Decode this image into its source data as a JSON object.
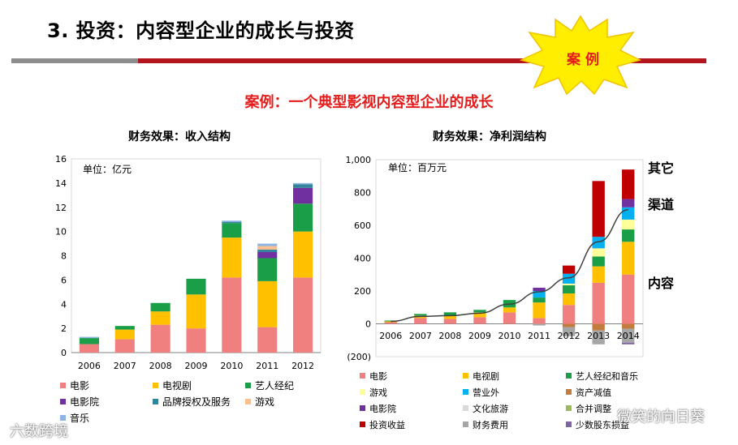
{
  "header": {
    "title": "3. 投资：内容型企业的成长与投资",
    "badge": "案 例",
    "subtitle": "案例：一个典型影视内容型企业的成长"
  },
  "watermarks": {
    "left": "六数跨境",
    "right": "微笑的向日葵"
  },
  "chart_data": [
    {
      "type": "bar",
      "stacked": true,
      "title": "财务效果：收入结构",
      "unit_label": "单位：亿元",
      "categories": [
        "2006",
        "2007",
        "2008",
        "2009",
        "2010",
        "2011",
        "2012"
      ],
      "ylim": [
        0,
        16
      ],
      "yticks": [
        0,
        2,
        4,
        6,
        8,
        10,
        12,
        14,
        16
      ],
      "legend_position": "bottom",
      "series": [
        {
          "name": "电影",
          "color": "#f08080",
          "values": [
            0.7,
            1.1,
            2.3,
            2.0,
            6.2,
            2.1,
            6.2
          ]
        },
        {
          "name": "电视剧",
          "color": "#ffc000",
          "values": [
            0.0,
            0.8,
            1.1,
            2.8,
            3.3,
            3.8,
            3.8
          ]
        },
        {
          "name": "艺人经纪",
          "color": "#1a9e48",
          "values": [
            0.5,
            0.3,
            0.7,
            1.3,
            1.2,
            1.9,
            2.3
          ]
        },
        {
          "name": "电影院",
          "color": "#7030a0",
          "values": [
            0.0,
            0.0,
            0.0,
            0.0,
            0.0,
            0.5,
            1.3
          ]
        },
        {
          "name": "品牌授权及服务",
          "color": "#31849b",
          "values": [
            0.0,
            0.0,
            0.0,
            0.0,
            0.1,
            0.2,
            0.3
          ]
        },
        {
          "name": "游戏",
          "color": "#fac090",
          "values": [
            0.0,
            0.0,
            0.0,
            0.0,
            0.0,
            0.3,
            0.0
          ]
        },
        {
          "name": "音乐",
          "color": "#8db4e2",
          "values": [
            0.1,
            0.0,
            0.0,
            0.0,
            0.1,
            0.2,
            0.1
          ]
        }
      ]
    },
    {
      "type": "bar",
      "stacked": true,
      "title": "财务效果：净利润结构",
      "unit_label": "单位：百万元",
      "categories": [
        "2006",
        "2007",
        "2008",
        "2009",
        "2010",
        "2011",
        "2012",
        "2013",
        "2014"
      ],
      "ylim": [
        -200,
        1000
      ],
      "yticks": [
        -200,
        0,
        200,
        400,
        600,
        800,
        1000
      ],
      "ytick_labels": [
        "(200)",
        "0",
        "200",
        "400",
        "600",
        "800",
        "1,000"
      ],
      "legend_position": "bottom",
      "annotations": [
        "其它",
        "渠道",
        "内容"
      ],
      "series": [
        {
          "name": "电影",
          "color": "#f08080",
          "values": [
            10,
            35,
            30,
            40,
            70,
            35,
            115,
            250,
            300
          ]
        },
        {
          "name": "电视剧",
          "color": "#ffc000",
          "values": [
            5,
            15,
            20,
            30,
            30,
            95,
            70,
            100,
            200
          ]
        },
        {
          "name": "艺人经纪和音乐",
          "color": "#1a9e48",
          "values": [
            5,
            10,
            20,
            15,
            45,
            30,
            50,
            60,
            75
          ]
        },
        {
          "name": "游戏",
          "color": "#ffff99",
          "values": [
            0,
            0,
            0,
            0,
            0,
            0,
            10,
            50,
            60
          ]
        },
        {
          "name": "营业外",
          "color": "#00b0f0",
          "values": [
            0,
            0,
            0,
            0,
            0,
            40,
            60,
            70,
            75
          ]
        },
        {
          "name": "资产减值",
          "color": "#c27c3e",
          "values": [
            0,
            0,
            0,
            0,
            0,
            0,
            -20,
            -40,
            -30
          ]
        },
        {
          "name": "电影院",
          "color": "#7030a0",
          "values": [
            0,
            0,
            0,
            0,
            0,
            20,
            0,
            0,
            50
          ]
        },
        {
          "name": "文化旅游",
          "color": "#d9d9d9",
          "values": [
            0,
            0,
            0,
            0,
            0,
            0,
            0,
            0,
            0
          ]
        },
        {
          "name": "合并调整",
          "color": "#9bbb59",
          "values": [
            0,
            0,
            0,
            0,
            0,
            0,
            0,
            0,
            0
          ]
        },
        {
          "name": "投资收益",
          "color": "#c00000",
          "values": [
            0,
            0,
            0,
            0,
            0,
            0,
            50,
            340,
            180
          ]
        },
        {
          "name": "财务费用",
          "color": "#a6a6a6",
          "values": [
            0,
            0,
            0,
            0,
            0,
            -10,
            -55,
            -85,
            -85
          ]
        },
        {
          "name": "少数股东损益",
          "color": "#8064a2",
          "values": [
            0,
            0,
            0,
            0,
            0,
            0,
            0,
            0,
            -10
          ]
        }
      ],
      "trend_line": {
        "name": "净利润",
        "color": "#404040",
        "values": [
          15,
          45,
          50,
          65,
          120,
          195,
          280,
          500,
          695
        ]
      }
    }
  ]
}
